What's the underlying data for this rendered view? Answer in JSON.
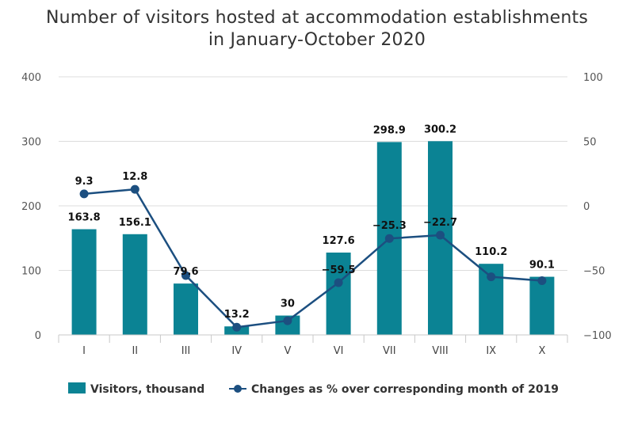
{
  "chart_data": {
    "type": "bar",
    "title_line1": "Number of visitors hosted at accommodation establishments",
    "title_line2": "in January-October 2020",
    "categories": [
      "I",
      "II",
      "III",
      "IV",
      "V",
      "VI",
      "VII",
      "VIII",
      "IX",
      "X"
    ],
    "series": [
      {
        "name": "Visitors, thousand",
        "type": "bar",
        "axis": "left",
        "color": "#0b8394",
        "values": [
          163.8,
          156.1,
          79.6,
          13.2,
          30,
          127.6,
          298.9,
          300.2,
          110.2,
          90.1
        ],
        "labels": [
          "163.8",
          "156.1",
          "79.6",
          "13.2",
          "30",
          "127.6",
          "298.9",
          "300.2",
          "110.2",
          "90.1"
        ]
      },
      {
        "name": "Changes as % over corresponding month of 2019",
        "type": "line",
        "axis": "right",
        "color": "#1c4f80",
        "values": [
          9.3,
          12.8,
          -54,
          -94,
          -89,
          -59.5,
          -25.3,
          -22.7,
          -55,
          -58
        ],
        "labels": [
          "9.3",
          "12.8",
          "",
          "",
          "",
          "-59.5",
          "-25.3",
          "-22.7",
          "",
          ""
        ]
      }
    ],
    "y_left": {
      "ylim": [
        0,
        400
      ],
      "ticks": [
        0,
        100,
        200,
        300,
        400
      ],
      "tick_labels": [
        "0",
        "100",
        "200",
        "300",
        "400"
      ]
    },
    "y_right": {
      "ylim": [
        -100,
        100
      ],
      "ticks": [
        -100,
        -50,
        0,
        50,
        100
      ],
      "tick_labels": [
        "−100",
        "−50",
        "0",
        "50",
        "100"
      ]
    },
    "grid": true,
    "legend_position": "bottom"
  }
}
